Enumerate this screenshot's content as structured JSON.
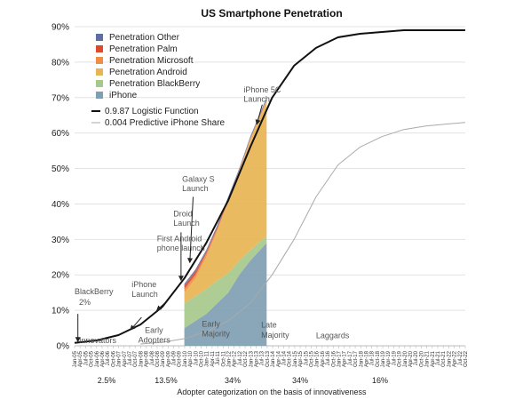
{
  "chart_data": {
    "type": "area",
    "title": "US Smartphone Penetration",
    "xlabel": "Adopter categorization on the basis of innovativeness",
    "ylabel": "",
    "ylim": [
      0,
      90
    ],
    "y_ticks": [
      "0%",
      "10%",
      "20%",
      "30%",
      "40%",
      "50%",
      "60%",
      "70%",
      "80%",
      "90%"
    ],
    "x_tick_template": "Jan-05",
    "x_ticks": [
      "Jan-05",
      "Apr-05",
      "Jul-05",
      "Oct-05",
      "Jan-06",
      "Apr-06",
      "Jul-06",
      "Oct-06",
      "Jan-07",
      "Apr-07",
      "Jul-07",
      "Oct-07",
      "Jan-08",
      "Apr-08",
      "Jul-08",
      "Oct-08",
      "Jan-09",
      "Apr-09",
      "Jul-09",
      "Oct-09",
      "Jan-10",
      "Apr-10",
      "Jul-10",
      "Oct-10",
      "Jan-11",
      "Apr-11",
      "Jul-11",
      "Oct-11",
      "Jan-12",
      "Apr-12",
      "Jul-12",
      "Oct-12",
      "Jan-13",
      "Apr-13",
      "Jul-13",
      "Oct-13",
      "Jan-14",
      "Apr-14",
      "Jul-14",
      "Oct-14",
      "Jan-15",
      "Apr-15",
      "Jul-15",
      "Oct-15",
      "Jan-16",
      "Apr-16",
      "Jul-16",
      "Oct-16",
      "Jan-17",
      "Apr-17",
      "Jul-17",
      "Oct-17",
      "Jan-18",
      "Apr-18",
      "Jul-18",
      "Oct-18",
      "Jan-19",
      "Apr-19",
      "Jul-19",
      "Oct-19",
      "Jan-20",
      "Apr-20",
      "Jul-20",
      "Oct-20",
      "Jan-21",
      "Apr-21",
      "Jul-21",
      "Oct-21",
      "Jan-22",
      "Apr-22",
      "Jul-22",
      "Oct-22"
    ],
    "grid": true,
    "legend_position": "top-left",
    "stack_x": [
      2010.0,
      2010.5,
      2011.0,
      2011.5,
      2012.0,
      2012.5,
      2013.0,
      2013.75
    ],
    "series": [
      {
        "name": "iPhone",
        "color": "#7f9fb3",
        "values": [
          5,
          7,
          9,
          12,
          15,
          20,
          24,
          29
        ]
      },
      {
        "name": "Penetration BlackBerry",
        "color": "#a6c98b",
        "values": [
          7,
          7,
          7,
          6.5,
          5.5,
          4,
          3,
          2
        ]
      },
      {
        "name": "Penetration Android",
        "color": "#e8b454",
        "values": [
          3,
          5,
          9,
          14,
          20,
          25,
          31,
          38
        ]
      },
      {
        "name": "Penetration Microsoft",
        "color": "#ef8e45",
        "values": [
          1,
          1,
          1,
          0.5,
          0.5,
          0.5,
          0.5,
          0.5
        ]
      },
      {
        "name": "Penetration Palm",
        "color": "#d94d2c",
        "values": [
          1,
          1,
          0.5,
          0.5,
          0.5,
          0,
          0,
          0
        ]
      },
      {
        "name": "Penetration Other",
        "color": "#5d6fa8",
        "values": [
          0.5,
          0.5,
          0.5,
          0.5,
          0.5,
          0.5,
          0.5,
          0.5
        ]
      }
    ],
    "lines": [
      {
        "name": "0.9.87 Logistic Function",
        "color": "#111111",
        "x": [
          2005,
          2006,
          2007,
          2008,
          2009,
          2010,
          2011,
          2012,
          2013,
          2014,
          2015,
          2016,
          2017,
          2018,
          2019,
          2020,
          2021,
          2022.8
        ],
        "values": [
          0.8,
          1.5,
          3,
          6,
          11,
          19,
          29,
          41,
          56,
          70,
          79,
          84,
          87,
          88,
          88.5,
          89,
          89,
          89
        ]
      },
      {
        "name": "0.004 Predictive iPhone Share",
        "color": "#aaaaaa",
        "x": [
          2008,
          2009,
          2010,
          2011,
          2012,
          2013,
          2014,
          2015,
          2016,
          2017,
          2018,
          2019,
          2020,
          2021,
          2022.8
        ],
        "values": [
          0.5,
          1,
          2,
          4,
          7,
          12,
          20,
          30,
          42,
          51,
          56,
          59,
          61,
          62,
          63
        ]
      }
    ],
    "annotations": [
      {
        "text": "BlackBerry",
        "x": 2005.0,
        "y": 14.5
      },
      {
        "text": "2%",
        "x": 2005.2,
        "y": 11.5
      },
      {
        "text": "iPhone",
        "x": 2007.6,
        "y": 16.5
      },
      {
        "text": "Launch",
        "x": 2007.6,
        "y": 13.8
      },
      {
        "text": "First Android",
        "x": 2008.75,
        "y": 29.5
      },
      {
        "text": "phone launch",
        "x": 2008.75,
        "y": 26.8
      },
      {
        "text": "Droid",
        "x": 2009.5,
        "y": 36.5
      },
      {
        "text": "Launch",
        "x": 2009.5,
        "y": 33.8
      },
      {
        "text": "Galaxy S",
        "x": 2009.9,
        "y": 46.3
      },
      {
        "text": "Launch",
        "x": 2009.9,
        "y": 43.6
      },
      {
        "text": "iPhone 5C",
        "x": 2012.7,
        "y": 71.5
      },
      {
        "text": "Launch",
        "x": 2012.7,
        "y": 68.8
      },
      {
        "text": "Innovators",
        "x": 2005.2,
        "y": 0.7
      },
      {
        "text": "Early",
        "x": 2008.2,
        "y": 3.6
      },
      {
        "text": "Adopters",
        "x": 2007.9,
        "y": 0.9
      },
      {
        "text": "Early",
        "x": 2010.8,
        "y": 5.4
      },
      {
        "text": "Majority",
        "x": 2010.8,
        "y": 2.6
      },
      {
        "text": "Late",
        "x": 2013.5,
        "y": 5.1
      },
      {
        "text": "Majority",
        "x": 2013.5,
        "y": 2.2
      },
      {
        "text": "Laggards",
        "x": 2016.0,
        "y": 2.1
      }
    ],
    "footer_percents": [
      "2.5%",
      "13.5%",
      "34%",
      "34%",
      "16%"
    ]
  }
}
